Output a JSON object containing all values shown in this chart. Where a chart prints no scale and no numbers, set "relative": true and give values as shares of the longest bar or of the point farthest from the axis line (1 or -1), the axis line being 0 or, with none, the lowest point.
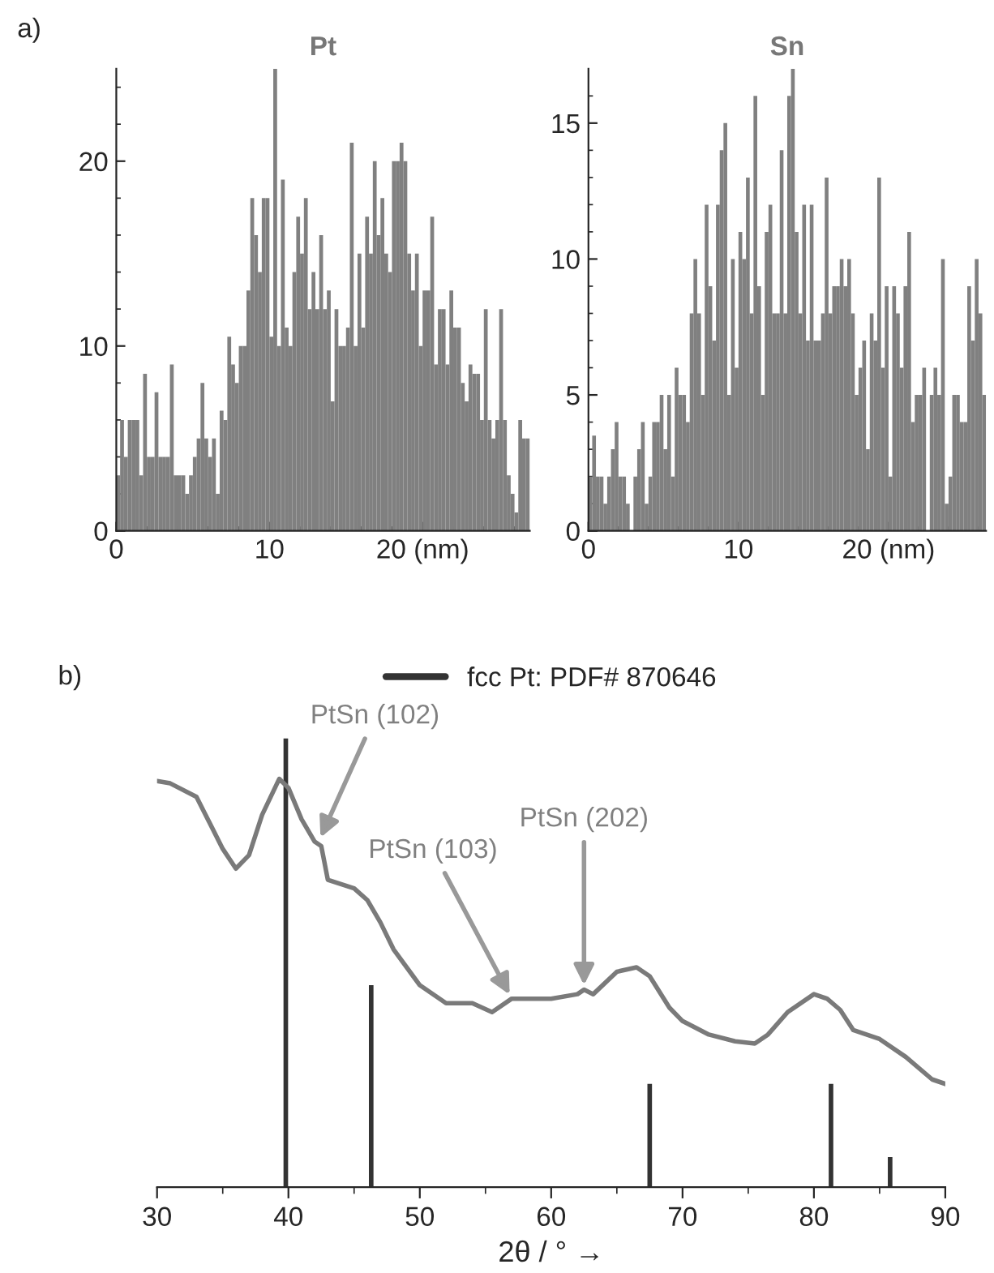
{
  "chart_data": [
    {
      "type": "histogram",
      "title": "Pt",
      "color": "#808080",
      "annotations": [
        "a)"
      ],
      "bins": [
        0,
        0.25,
        0.5,
        0.75,
        1,
        1.25,
        1.5,
        1.75,
        2,
        2.25,
        2.5,
        2.75,
        3,
        3.25,
        3.5,
        3.75,
        4,
        4.25,
        4.5,
        4.75,
        5,
        5.25,
        5.5,
        5.75,
        6,
        6.25,
        6.5,
        6.75,
        7,
        7.25,
        7.5,
        7.75,
        8,
        8.25,
        8.5,
        8.75,
        9,
        9.25,
        9.5,
        9.75,
        10,
        10.25,
        10.5,
        10.75,
        11,
        11.25,
        11.5,
        11.75,
        12,
        12.25,
        12.5,
        12.75,
        13,
        13.25,
        13.5,
        13.75,
        14,
        14.25,
        14.5,
        14.75,
        15,
        15.25,
        15.5,
        15.75,
        16,
        16.25,
        16.5,
        16.75,
        17,
        17.25,
        17.5,
        17.75,
        18,
        18.25,
        18.5,
        18.75,
        19,
        19.25,
        19.5,
        19.75,
        20,
        20.25,
        20.5,
        20.75,
        21,
        21.25,
        21.5,
        21.75,
        22,
        22.25,
        22.5,
        22.75,
        23,
        23.25,
        23.5,
        23.75,
        24,
        24.25,
        24.5,
        24.75,
        25,
        25.25,
        25.5,
        25.75,
        26,
        26.25,
        26.5,
        26.75,
        27
      ],
      "values": [
        3,
        6,
        4,
        6,
        6,
        6,
        3,
        8.5,
        4,
        4,
        7.5,
        4,
        4,
        4,
        9,
        3,
        3,
        3,
        2,
        3,
        4,
        5,
        8,
        5,
        4,
        5,
        2,
        6.5,
        6,
        10.5,
        9,
        8,
        10,
        10,
        13,
        18,
        16,
        14,
        18,
        18,
        10.5,
        25,
        10,
        19,
        11,
        10,
        14,
        17,
        15,
        18,
        12,
        14,
        12,
        16,
        12,
        13,
        7,
        12,
        10,
        10,
        11,
        21,
        10,
        15,
        11,
        17,
        15,
        20,
        16,
        18,
        15,
        14,
        20,
        20,
        21,
        20,
        15,
        13,
        15,
        10,
        13,
        13,
        17,
        9,
        12,
        12,
        9,
        13,
        11,
        11,
        8,
        7,
        9,
        8.5,
        8.5,
        6,
        12,
        6,
        5,
        6,
        12,
        6,
        3,
        2,
        1,
        6,
        5,
        5
      ],
      "xlim": [
        0,
        27
      ],
      "ylim": [
        0,
        25
      ],
      "xticks": [
        0,
        {
          "value": 2,
          "label": null
        },
        {
          "value": 4,
          "label": null
        },
        {
          "value": 6,
          "label": null
        },
        {
          "value": 8,
          "label": null
        },
        10,
        {
          "value": 12,
          "label": null
        },
        {
          "value": 14,
          "label": null
        },
        {
          "value": 16,
          "label": null
        },
        {
          "value": 18,
          "label": null
        },
        {
          "value": 20,
          "label": "20 (nm)"
        },
        {
          "value": 22,
          "label": null
        },
        {
          "value": 24,
          "label": null
        },
        {
          "value": 26,
          "label": null
        }
      ],
      "yticks": [
        0,
        {
          "value": 2,
          "label": null
        },
        {
          "value": 4,
          "label": null
        },
        {
          "value": 6,
          "label": null
        },
        {
          "value": 8,
          "label": null
        },
        10,
        {
          "value": 12,
          "label": null
        },
        {
          "value": 14,
          "label": null
        },
        {
          "value": 16,
          "label": null
        },
        {
          "value": 18,
          "label": null
        },
        20,
        {
          "value": 22,
          "label": null
        },
        {
          "value": 24,
          "label": null
        }
      ]
    },
    {
      "type": "histogram",
      "title": "Sn",
      "color": "#808080",
      "bins": [
        0,
        0.25,
        0.5,
        0.75,
        1,
        1.25,
        1.5,
        1.75,
        2,
        2.25,
        2.5,
        2.75,
        3,
        3.25,
        3.5,
        3.75,
        4,
        4.25,
        4.5,
        4.75,
        5,
        5.25,
        5.5,
        5.75,
        6,
        6.25,
        6.5,
        6.75,
        7,
        7.25,
        7.5,
        7.75,
        8,
        8.25,
        8.5,
        8.75,
        9,
        9.25,
        9.5,
        9.75,
        10,
        10.25,
        10.5,
        10.75,
        11,
        11.25,
        11.5,
        11.75,
        12,
        12.25,
        12.5,
        12.75,
        13,
        13.25,
        13.5,
        13.75,
        14,
        14.25,
        14.5,
        14.75,
        15,
        15.25,
        15.5,
        15.75,
        16,
        16.25,
        16.5,
        16.75,
        17,
        17.25,
        17.5,
        17.75,
        18,
        18.25,
        18.5,
        18.75,
        19,
        19.25,
        19.5,
        19.75,
        20,
        20.25,
        20.5,
        20.75,
        21,
        21.25,
        21.5,
        21.75,
        22,
        22.25,
        22.5,
        22.75,
        23,
        23.25,
        23.5,
        23.75,
        24,
        24.25,
        24.5,
        24.75,
        25,
        25.25,
        25.5,
        25.75,
        26,
        26.25,
        26.5
      ],
      "values": [
        2,
        3.5,
        2,
        2,
        1,
        2,
        3,
        4,
        2,
        2,
        1,
        0,
        2,
        3,
        4,
        1,
        2,
        4,
        4,
        5,
        3,
        5,
        2,
        6,
        5,
        5,
        4,
        8,
        10,
        8,
        5,
        12,
        9,
        7,
        12,
        14,
        15,
        5,
        10,
        6,
        11,
        10,
        13,
        8,
        16,
        9,
        5,
        11,
        12,
        8,
        8,
        14,
        8,
        16,
        17,
        11,
        8,
        12,
        7,
        12,
        7,
        7,
        8,
        13,
        8,
        9,
        9,
        10,
        9,
        10,
        8,
        5,
        6,
        7,
        3,
        8,
        7,
        13,
        6,
        9,
        2,
        9,
        8,
        6,
        9,
        11,
        4,
        5,
        5,
        6,
        0,
        5,
        6,
        5,
        10,
        1,
        2,
        5,
        5,
        4,
        4,
        9,
        7,
        10,
        8,
        5
      ],
      "xlim": [
        0,
        26.5
      ],
      "ylim": [
        0,
        17
      ],
      "xticks": [
        0,
        {
          "value": 2,
          "label": null
        },
        {
          "value": 4,
          "label": null
        },
        {
          "value": 6,
          "label": null
        },
        {
          "value": 8,
          "label": null
        },
        10,
        {
          "value": 12,
          "label": null
        },
        {
          "value": 14,
          "label": null
        },
        {
          "value": 16,
          "label": null
        },
        {
          "value": 18,
          "label": null
        },
        {
          "value": 20,
          "label": "20 (nm)"
        },
        {
          "value": 22,
          "label": null
        },
        {
          "value": 24,
          "label": null
        },
        {
          "value": 26,
          "label": null
        }
      ],
      "yticks": [
        0,
        {
          "value": 1,
          "label": null
        },
        {
          "value": 2,
          "label": null
        },
        {
          "value": 3,
          "label": null
        },
        {
          "value": 4,
          "label": null
        },
        5,
        {
          "value": 6,
          "label": null
        },
        {
          "value": 7,
          "label": null
        },
        {
          "value": 8,
          "label": null
        },
        {
          "value": 9,
          "label": null
        },
        10,
        {
          "value": 11,
          "label": null
        },
        {
          "value": 12,
          "label": null
        },
        {
          "value": 13,
          "label": null
        },
        {
          "value": 14,
          "label": null
        },
        15,
        {
          "value": 16,
          "label": null
        }
      ]
    },
    {
      "type": "line",
      "relative": true,
      "xlabel": "2θ / ° →",
      "legend": "top",
      "tick_labels": "x",
      "annotations": [
        "b)",
        {
          "text": "PtSn (102)",
          "x": 42.3,
          "y": 0.77
        },
        {
          "text": "PtSn (103)",
          "x": 57,
          "y": 0.42
        },
        {
          "text": "PtSn (202)",
          "x": 62.5,
          "y": 0.44
        }
      ],
      "xlim": [
        30,
        90
      ],
      "xticks": [
        30,
        {
          "value": 35,
          "label": null
        },
        40,
        {
          "value": 45,
          "label": null
        },
        50,
        {
          "value": 55,
          "label": null
        },
        60,
        {
          "value": 65,
          "label": null
        },
        70,
        {
          "value": 75,
          "label": null
        },
        80,
        {
          "value": 85,
          "label": null
        },
        90
      ],
      "series": [
        {
          "type": "line",
          "color": "#7a7a7a",
          "x": [
            30,
            31,
            33,
            35,
            36,
            37,
            38,
            39.3,
            40,
            41,
            42,
            42.5,
            43,
            45,
            46,
            47,
            48,
            50,
            52,
            54,
            55.5,
            57,
            60,
            62,
            62.5,
            63.2,
            65,
            66.5,
            67.5,
            69,
            70,
            72,
            74,
            75.5,
            76.5,
            78,
            80,
            81,
            82,
            83,
            85,
            87,
            89,
            90
          ],
          "values": [
            0.905,
            0.9,
            0.87,
            0.754,
            0.71,
            0.74,
            0.83,
            0.91,
            0.89,
            0.82,
            0.77,
            0.76,
            0.685,
            0.666,
            0.64,
            0.59,
            0.53,
            0.45,
            0.41,
            0.41,
            0.39,
            0.42,
            0.42,
            0.43,
            0.44,
            0.43,
            0.48,
            0.49,
            0.47,
            0.4,
            0.37,
            0.34,
            0.325,
            0.32,
            0.34,
            0.39,
            0.43,
            0.42,
            0.395,
            0.35,
            0.33,
            0.29,
            0.24,
            0.23
          ]
        },
        {
          "type": "bar",
          "name": "fcc Pt: PDF# 870646",
          "color": "#333333",
          "x": [
            39.8,
            46.3,
            67.5,
            81.3,
            85.8
          ],
          "values": [
            1,
            0.45,
            0.23,
            0.23,
            0.067
          ]
        }
      ]
    }
  ]
}
